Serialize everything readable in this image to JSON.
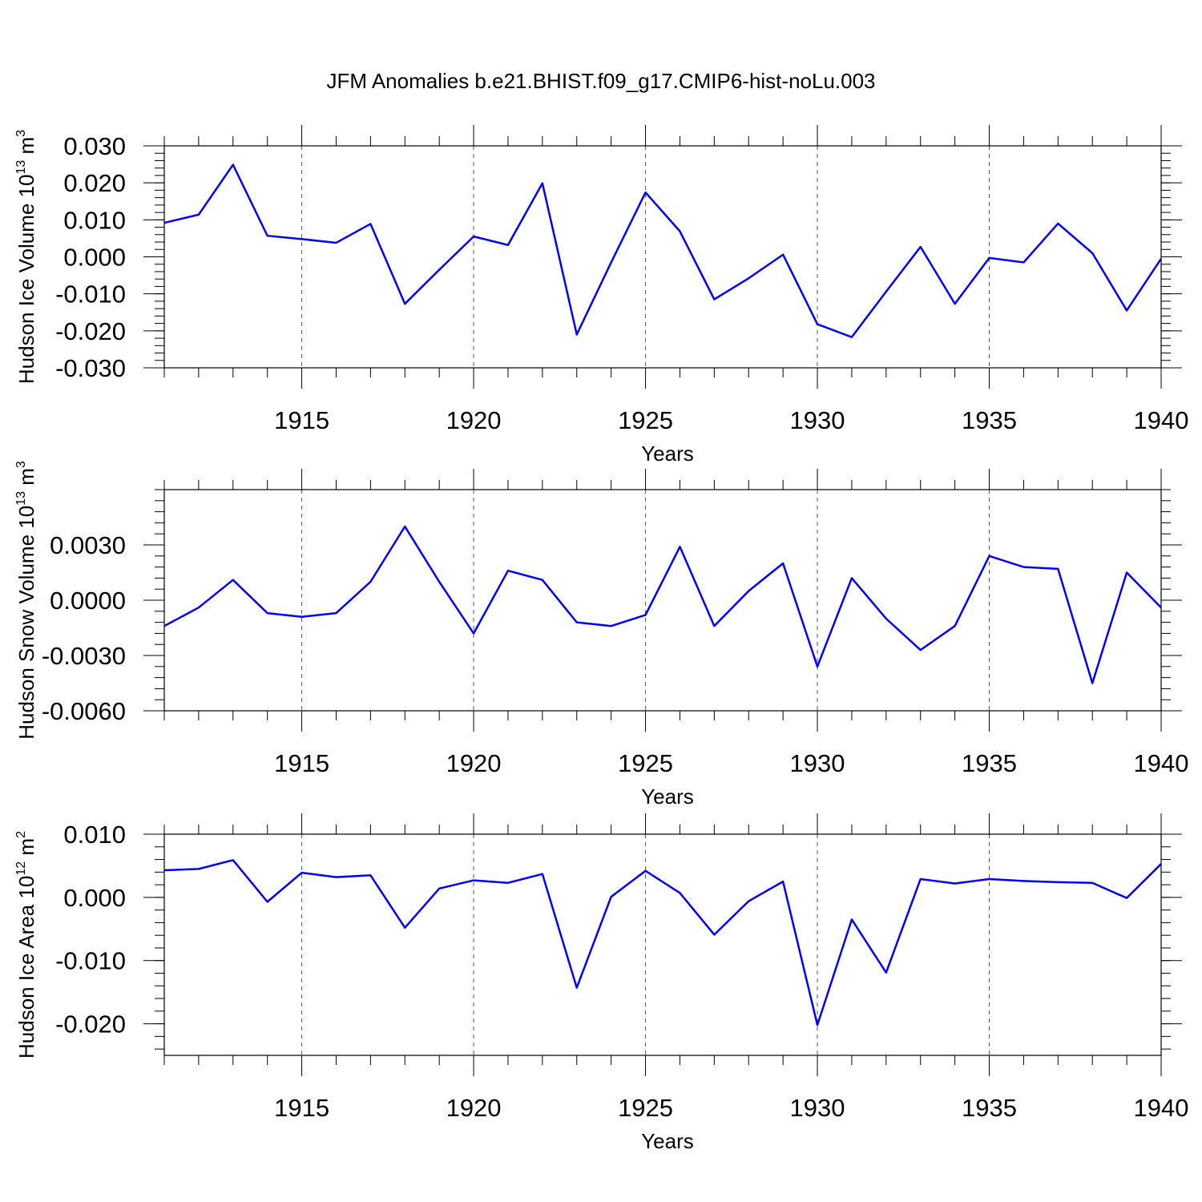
{
  "title": "JFM Anomalies b.e21.BHIST.f09_g17.CMIP6-hist-noLu.003",
  "line_color": "#0000ff",
  "chart_data": [
    {
      "type": "line",
      "ylabel": "Hudson Ice Volume",
      "ylabel_unit_base": "10",
      "ylabel_unit_exp": "13",
      "ylabel_unit_tail": " m",
      "ylabel_unit_tail_exp": "3",
      "xlabel": "Years",
      "xlim": [
        1911,
        1940
      ],
      "ylim": [
        -0.03,
        0.03
      ],
      "yticks": [
        -0.03,
        -0.02,
        -0.01,
        0.0,
        0.01,
        0.02,
        0.03
      ],
      "ytick_labels": [
        "-0.030",
        "-0.020",
        "-0.010",
        "0.000",
        "0.010",
        "0.020",
        "0.030"
      ],
      "xticks": [
        1915,
        1920,
        1925,
        1930,
        1935,
        1940
      ],
      "xtick_labels": [
        "1915",
        "1920",
        "1925",
        "1930",
        "1935",
        "1940"
      ],
      "grid": "vertical dashed at major x ticks",
      "x": [
        1911,
        1912,
        1913,
        1914,
        1915,
        1916,
        1917,
        1918,
        1919,
        1920,
        1921,
        1922,
        1923,
        1924,
        1925,
        1926,
        1927,
        1928,
        1929,
        1930,
        1931,
        1932,
        1933,
        1934,
        1935,
        1936,
        1937,
        1938,
        1939,
        1940
      ],
      "values": [
        0.0092,
        0.0114,
        0.0249,
        0.0057,
        0.0048,
        0.0038,
        0.0089,
        -0.0127,
        -0.0035,
        0.0055,
        0.0032,
        0.0199,
        -0.021,
        -0.0015,
        0.0174,
        0.0069,
        -0.0115,
        -0.0058,
        0.0006,
        -0.0182,
        -0.0217,
        -0.0094,
        0.0027,
        -0.0127,
        -0.0003,
        -0.0015,
        0.009,
        0.001,
        -0.0145,
        -0.0005
      ]
    },
    {
      "type": "line",
      "ylabel": "Hudson Snow Volume",
      "ylabel_unit_base": "10",
      "ylabel_unit_exp": "13",
      "ylabel_unit_tail": " m",
      "ylabel_unit_tail_exp": "3",
      "xlabel": "Years",
      "xlim": [
        1911,
        1940
      ],
      "ylim": [
        -0.006,
        0.006
      ],
      "yticks": [
        -0.006,
        -0.003,
        0.0,
        0.003
      ],
      "ytick_labels": [
        "-0.0060",
        "-0.0030",
        "0.0000",
        "0.0030"
      ],
      "xticks": [
        1915,
        1920,
        1925,
        1930,
        1935,
        1940
      ],
      "xtick_labels": [
        "1915",
        "1920",
        "1925",
        "1930",
        "1935",
        "1940"
      ],
      "grid": "vertical dashed at major x ticks",
      "x": [
        1911,
        1912,
        1913,
        1914,
        1915,
        1916,
        1917,
        1918,
        1919,
        1920,
        1921,
        1922,
        1923,
        1924,
        1925,
        1926,
        1927,
        1928,
        1929,
        1930,
        1931,
        1932,
        1933,
        1934,
        1935,
        1936,
        1937,
        1938,
        1939,
        1940
      ],
      "values": [
        -0.0014,
        -0.0004,
        0.0011,
        -0.0007,
        -0.0009,
        -0.0007,
        0.001,
        0.004,
        0.001,
        -0.0018,
        0.0016,
        0.0011,
        -0.0012,
        -0.0014,
        -0.0008,
        0.0029,
        -0.0014,
        0.0005,
        0.002,
        -0.0036,
        0.0012,
        -0.001,
        -0.0027,
        -0.0014,
        0.0024,
        0.0018,
        0.0017,
        -0.0045,
        0.0015,
        -0.0004
      ]
    },
    {
      "type": "line",
      "ylabel": "Hudson Ice Area",
      "ylabel_unit_base": "10",
      "ylabel_unit_exp": "12",
      "ylabel_unit_tail": " m",
      "ylabel_unit_tail_exp": "2",
      "xlabel": "Years",
      "xlim": [
        1911,
        1940
      ],
      "ylim": [
        -0.025,
        0.01
      ],
      "yticks": [
        -0.02,
        -0.01,
        0.0,
        0.01
      ],
      "ytick_labels": [
        "-0.020",
        "-0.010",
        "0.000",
        "0.010"
      ],
      "xticks": [
        1915,
        1920,
        1925,
        1930,
        1935,
        1940
      ],
      "xtick_labels": [
        "1915",
        "1920",
        "1925",
        "1930",
        "1935",
        "1940"
      ],
      "grid": "vertical dashed at major x ticks",
      "x": [
        1911,
        1912,
        1913,
        1914,
        1915,
        1916,
        1917,
        1918,
        1919,
        1920,
        1921,
        1922,
        1923,
        1924,
        1925,
        1926,
        1927,
        1928,
        1929,
        1930,
        1931,
        1932,
        1933,
        1934,
        1935,
        1936,
        1937,
        1938,
        1939,
        1940
      ],
      "values": [
        0.0043,
        0.0045,
        0.0059,
        -0.0007,
        0.0039,
        0.0032,
        0.0035,
        -0.0048,
        0.0014,
        0.0027,
        0.0023,
        0.0037,
        -0.0143,
        0.0001,
        0.0042,
        0.0007,
        -0.0059,
        -0.0006,
        0.0025,
        -0.0202,
        -0.0035,
        -0.0119,
        0.0029,
        0.0022,
        0.0029,
        0.0026,
        0.0024,
        0.0023,
        -0.0001,
        0.0053
      ]
    }
  ]
}
